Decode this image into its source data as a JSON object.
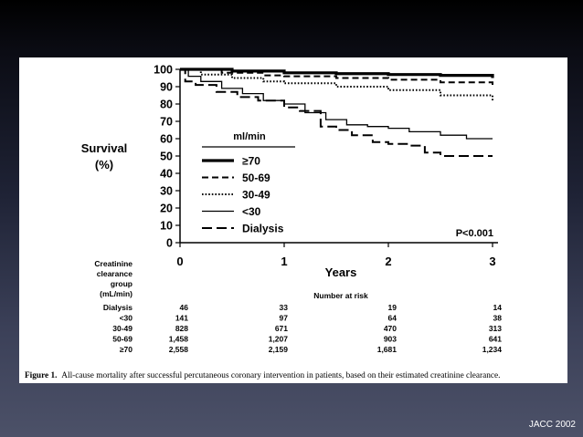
{
  "chart_data": {
    "type": "line",
    "ylabel_line1": "Survival",
    "ylabel_line2": "(%)",
    "xlabel": "Years",
    "xlim": [
      0,
      3
    ],
    "ylim": [
      0,
      100
    ],
    "x_ticks": [
      "0",
      "1",
      "2",
      "3"
    ],
    "y_ticks": [
      "0",
      "10",
      "20",
      "30",
      "40",
      "50",
      "60",
      "70",
      "80",
      "90",
      "100"
    ],
    "legend_title": "ml/min",
    "series": [
      {
        "name": "≥70",
        "style": "thick-solid",
        "points": [
          [
            0,
            100
          ],
          [
            0.5,
            99
          ],
          [
            1,
            98
          ],
          [
            1.5,
            97.5
          ],
          [
            2,
            97
          ],
          [
            2.5,
            96.5
          ],
          [
            3,
            95
          ]
        ]
      },
      {
        "name": "50-69",
        "style": "dashed",
        "points": [
          [
            0,
            100
          ],
          [
            0.4,
            98
          ],
          [
            0.8,
            96.5
          ],
          [
            1,
            96
          ],
          [
            1.5,
            95
          ],
          [
            2,
            94
          ],
          [
            2.5,
            92.5
          ],
          [
            3,
            91
          ]
        ]
      },
      {
        "name": "30-49",
        "style": "dotted",
        "points": [
          [
            0,
            100
          ],
          [
            0.2,
            97
          ],
          [
            0.5,
            95
          ],
          [
            0.8,
            93
          ],
          [
            1,
            92
          ],
          [
            1.5,
            90
          ],
          [
            2,
            88
          ],
          [
            2.5,
            85
          ],
          [
            3,
            82
          ]
        ]
      },
      {
        "name": "<30",
        "style": "thin-solid",
        "points": [
          [
            0,
            100
          ],
          [
            0.08,
            96
          ],
          [
            0.2,
            93
          ],
          [
            0.4,
            89
          ],
          [
            0.6,
            86
          ],
          [
            0.8,
            82
          ],
          [
            1,
            80
          ],
          [
            1.2,
            75
          ],
          [
            1.4,
            71
          ],
          [
            1.6,
            68
          ],
          [
            1.8,
            67
          ],
          [
            2,
            66
          ],
          [
            2.2,
            64
          ],
          [
            2.5,
            62
          ],
          [
            2.75,
            60
          ],
          [
            3,
            60
          ]
        ]
      },
      {
        "name": "Dialysis",
        "style": "long-dashed",
        "points": [
          [
            0,
            100
          ],
          [
            0.05,
            93
          ],
          [
            0.15,
            91
          ],
          [
            0.35,
            87
          ],
          [
            0.55,
            84
          ],
          [
            0.75,
            82
          ],
          [
            1,
            78
          ],
          [
            1.15,
            76
          ],
          [
            1.35,
            67
          ],
          [
            1.5,
            65
          ],
          [
            1.65,
            62
          ],
          [
            1.85,
            58
          ],
          [
            2,
            57
          ],
          [
            2.2,
            56
          ],
          [
            2.35,
            52
          ],
          [
            2.5,
            50
          ],
          [
            3,
            50
          ]
        ]
      }
    ],
    "annotation": "P<0.001"
  },
  "risk_table": {
    "group_label_lines": [
      "Creatinine",
      "clearance",
      "group",
      "(mL/min)"
    ],
    "header": "Number at risk",
    "rows": [
      {
        "label": "Dialysis",
        "values": [
          "46",
          "33",
          "19",
          "14"
        ]
      },
      {
        "label": "<30",
        "values": [
          "141",
          "97",
          "64",
          "38"
        ]
      },
      {
        "label": "30-49",
        "values": [
          "828",
          "671",
          "470",
          "313"
        ]
      },
      {
        "label": "50-69",
        "values": [
          "1,458",
          "1,207",
          "903",
          "641"
        ]
      },
      {
        "label": "≥70",
        "values": [
          "2,558",
          "2,159",
          "1,681",
          "1,234"
        ]
      }
    ]
  },
  "caption": {
    "label": "Figure 1.",
    "text": "All-cause mortality after successful percutaneous coronary intervention in patients, based on their estimated creatinine clearance."
  },
  "footer": {
    "credit": "JACC 2002"
  }
}
